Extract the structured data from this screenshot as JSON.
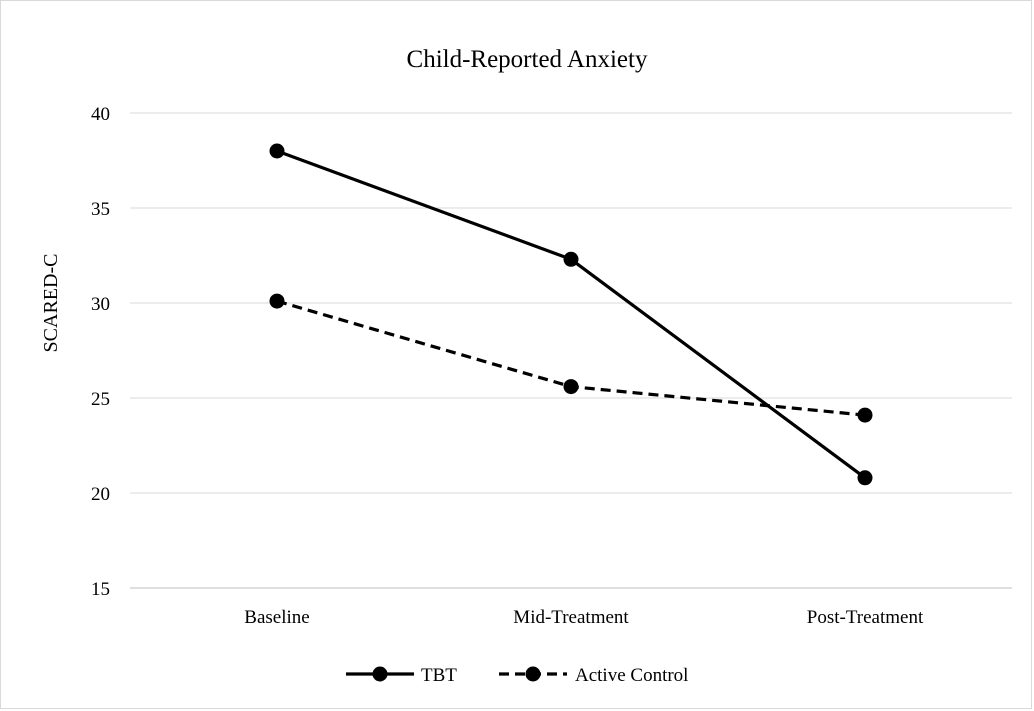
{
  "chart_data": {
    "type": "line",
    "title": "Child-Reported Anxiety",
    "xlabel": "",
    "ylabel": "SCARED-C",
    "categories": [
      "Baseline",
      "Mid-Treatment",
      "Post-Treatment"
    ],
    "ylim": [
      15,
      40
    ],
    "yticks": [
      15,
      20,
      25,
      30,
      35,
      40
    ],
    "grid": true,
    "legend_position": "bottom",
    "series": [
      {
        "name": "TBT",
        "values": [
          38.0,
          32.3,
          20.8
        ],
        "style": "solid",
        "color": "#000000"
      },
      {
        "name": "Active Control",
        "values": [
          30.1,
          25.6,
          24.1
        ],
        "style": "dashed",
        "color": "#000000"
      }
    ]
  }
}
